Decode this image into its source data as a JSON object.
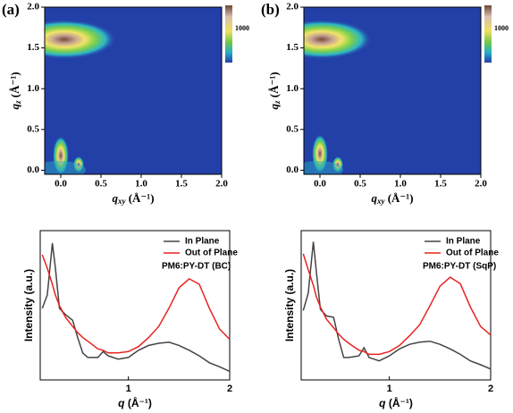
{
  "chart_data": [
    {
      "type": "heatmap",
      "panel_label": "(a)",
      "xlabel": {
        "symbol": "q",
        "sub": "xy",
        "unit": "(Å⁻¹)"
      },
      "ylabel": {
        "symbol": "q",
        "sub": "z",
        "unit": "(Å⁻¹)"
      },
      "xlim": [
        -0.2,
        2.0
      ],
      "ylim": [
        -0.05,
        2.0
      ],
      "xticks": [
        {
          "value": 0,
          "label": "0.0"
        },
        {
          "value": 0.5,
          "label": "0.5"
        },
        {
          "value": 1,
          "label": "1.0"
        },
        {
          "value": 1.5,
          "label": "1.5"
        },
        {
          "value": 2,
          "label": "2.0"
        }
      ],
      "yticks": [
        {
          "value": 0,
          "label": "0.0"
        },
        {
          "value": 0.5,
          "label": "0.5"
        },
        {
          "value": 1,
          "label": "1.0"
        },
        {
          "value": 1.5,
          "label": "1.5"
        },
        {
          "value": 2,
          "label": "2.0"
        }
      ],
      "colorbar_label": "1000"
    },
    {
      "type": "heatmap",
      "panel_label": "(b)",
      "xlabel": {
        "symbol": "q",
        "sub": "xy",
        "unit": "(Å⁻¹)"
      },
      "ylabel": {
        "symbol": "q",
        "sub": "z",
        "unit": "(Å⁻¹)"
      },
      "xlim": [
        -0.2,
        2.0
      ],
      "ylim": [
        -0.05,
        2.0
      ],
      "xticks": [
        {
          "value": 0,
          "label": "0.0"
        },
        {
          "value": 0.5,
          "label": "0.5"
        },
        {
          "value": 1,
          "label": "1.0"
        },
        {
          "value": 1.5,
          "label": "1.5"
        },
        {
          "value": 2,
          "label": "2.0"
        }
      ],
      "yticks": [
        {
          "value": 0,
          "label": "0.0"
        },
        {
          "value": 0.5,
          "label": "0.5"
        },
        {
          "value": 1,
          "label": "1.0"
        },
        {
          "value": 1.5,
          "label": "1.5"
        },
        {
          "value": 2,
          "label": "2.0"
        }
      ],
      "colorbar_label": "1000"
    },
    {
      "type": "line",
      "annotation": "PM6:PY-DT (BC)",
      "xlabel": {
        "symbol": "q",
        "unit": "(Å⁻¹)"
      },
      "ylabel": "Intensity (a.u.)",
      "log_y": true,
      "xlim": [
        0.13,
        2.0
      ],
      "ylim": [
        1,
        100
      ],
      "xticks": [
        1,
        2
      ],
      "x": [
        0.15,
        0.2,
        0.25,
        0.28,
        0.32,
        0.38,
        0.45,
        0.5,
        0.55,
        0.6,
        0.7,
        0.75,
        0.8,
        0.9,
        1.0,
        1.1,
        1.2,
        1.3,
        1.4,
        1.5,
        1.6,
        1.7,
        1.8,
        1.9,
        2.0
      ],
      "series": [
        {
          "name": "In Plane",
          "color": "#444444",
          "values": [
            9.1,
            13.7,
            67.9,
            31.4,
            9.1,
            7.5,
            6.3,
            3.7,
            2.3,
            2.0,
            2.0,
            2.4,
            2.1,
            1.9,
            2.0,
            2.5,
            2.9,
            3.1,
            3.2,
            2.9,
            2.5,
            2.1,
            1.7,
            1.5,
            1.3
          ]
        },
        {
          "name": "Out of Plane",
          "color": "#e8231f",
          "values": [
            47.5,
            31.4,
            19.1,
            13.7,
            9.9,
            6.9,
            5.2,
            4.3,
            3.7,
            3.3,
            2.6,
            2.5,
            2.3,
            2.3,
            2.4,
            2.8,
            3.7,
            5.2,
            9.1,
            17.1,
            22.6,
            19.1,
            9.1,
            4.8,
            3.5
          ]
        }
      ]
    },
    {
      "type": "line",
      "annotation": "PM6:PY-DT (SqP)",
      "xlabel": {
        "symbol": "q",
        "unit": "(Å⁻¹)"
      },
      "ylabel": "Intensity (a.u.)",
      "log_y": true,
      "xlim": [
        0.13,
        2.0
      ],
      "ylim": [
        1,
        100
      ],
      "xticks": [
        1,
        2
      ],
      "x": [
        0.15,
        0.2,
        0.25,
        0.28,
        0.32,
        0.38,
        0.45,
        0.5,
        0.55,
        0.6,
        0.7,
        0.75,
        0.8,
        0.9,
        1.0,
        1.1,
        1.2,
        1.3,
        1.4,
        1.5,
        1.6,
        1.7,
        1.8,
        1.9,
        2.0
      ],
      "series": [
        {
          "name": "In Plane",
          "color": "#444444",
          "values": [
            8.5,
            14.5,
            71.0,
            28.0,
            8.8,
            7.2,
            6.9,
            3.5,
            2.0,
            2.0,
            2.1,
            2.7,
            2.0,
            1.8,
            2.1,
            2.6,
            3.0,
            3.2,
            3.3,
            3.0,
            2.6,
            2.2,
            1.8,
            1.6,
            1.4
          ]
        },
        {
          "name": "Out of Plane",
          "color": "#e8231f",
          "values": [
            49.0,
            30.0,
            18.5,
            13.0,
            9.5,
            6.5,
            5.0,
            4.1,
            3.5,
            3.1,
            2.5,
            2.4,
            2.2,
            2.2,
            2.4,
            2.9,
            3.9,
            5.5,
            9.8,
            18.0,
            23.8,
            19.5,
            9.5,
            5.2,
            4.0
          ]
        }
      ]
    }
  ]
}
